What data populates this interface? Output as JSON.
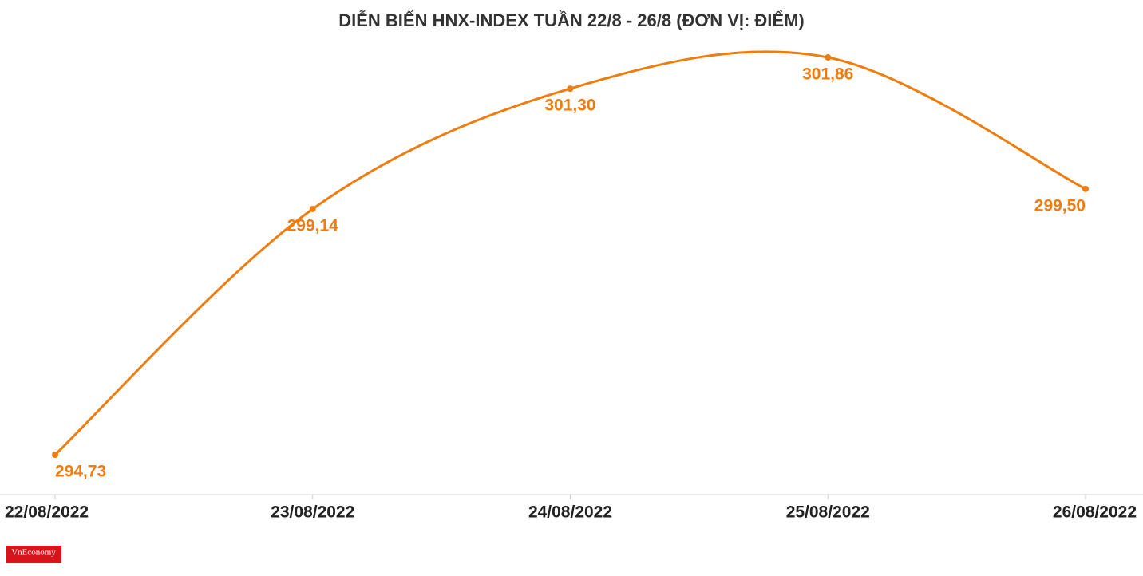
{
  "chart_data": {
    "type": "line",
    "title": "DIỄN BIẾN HNX-INDEX TUẦN 22/8 - 26/8 (ĐƠN VỊ: ĐIỂM)",
    "categories": [
      "22/08/2022",
      "23/08/2022",
      "24/08/2022",
      "25/08/2022",
      "26/08/2022"
    ],
    "values": [
      294.73,
      299.14,
      301.3,
      301.86,
      299.5
    ],
    "value_labels": [
      "294,73",
      "299,14",
      "301,30",
      "301,86",
      "299,50"
    ],
    "color": "#ee7d0e",
    "smooth": true
  },
  "logo": "VnEconomy"
}
